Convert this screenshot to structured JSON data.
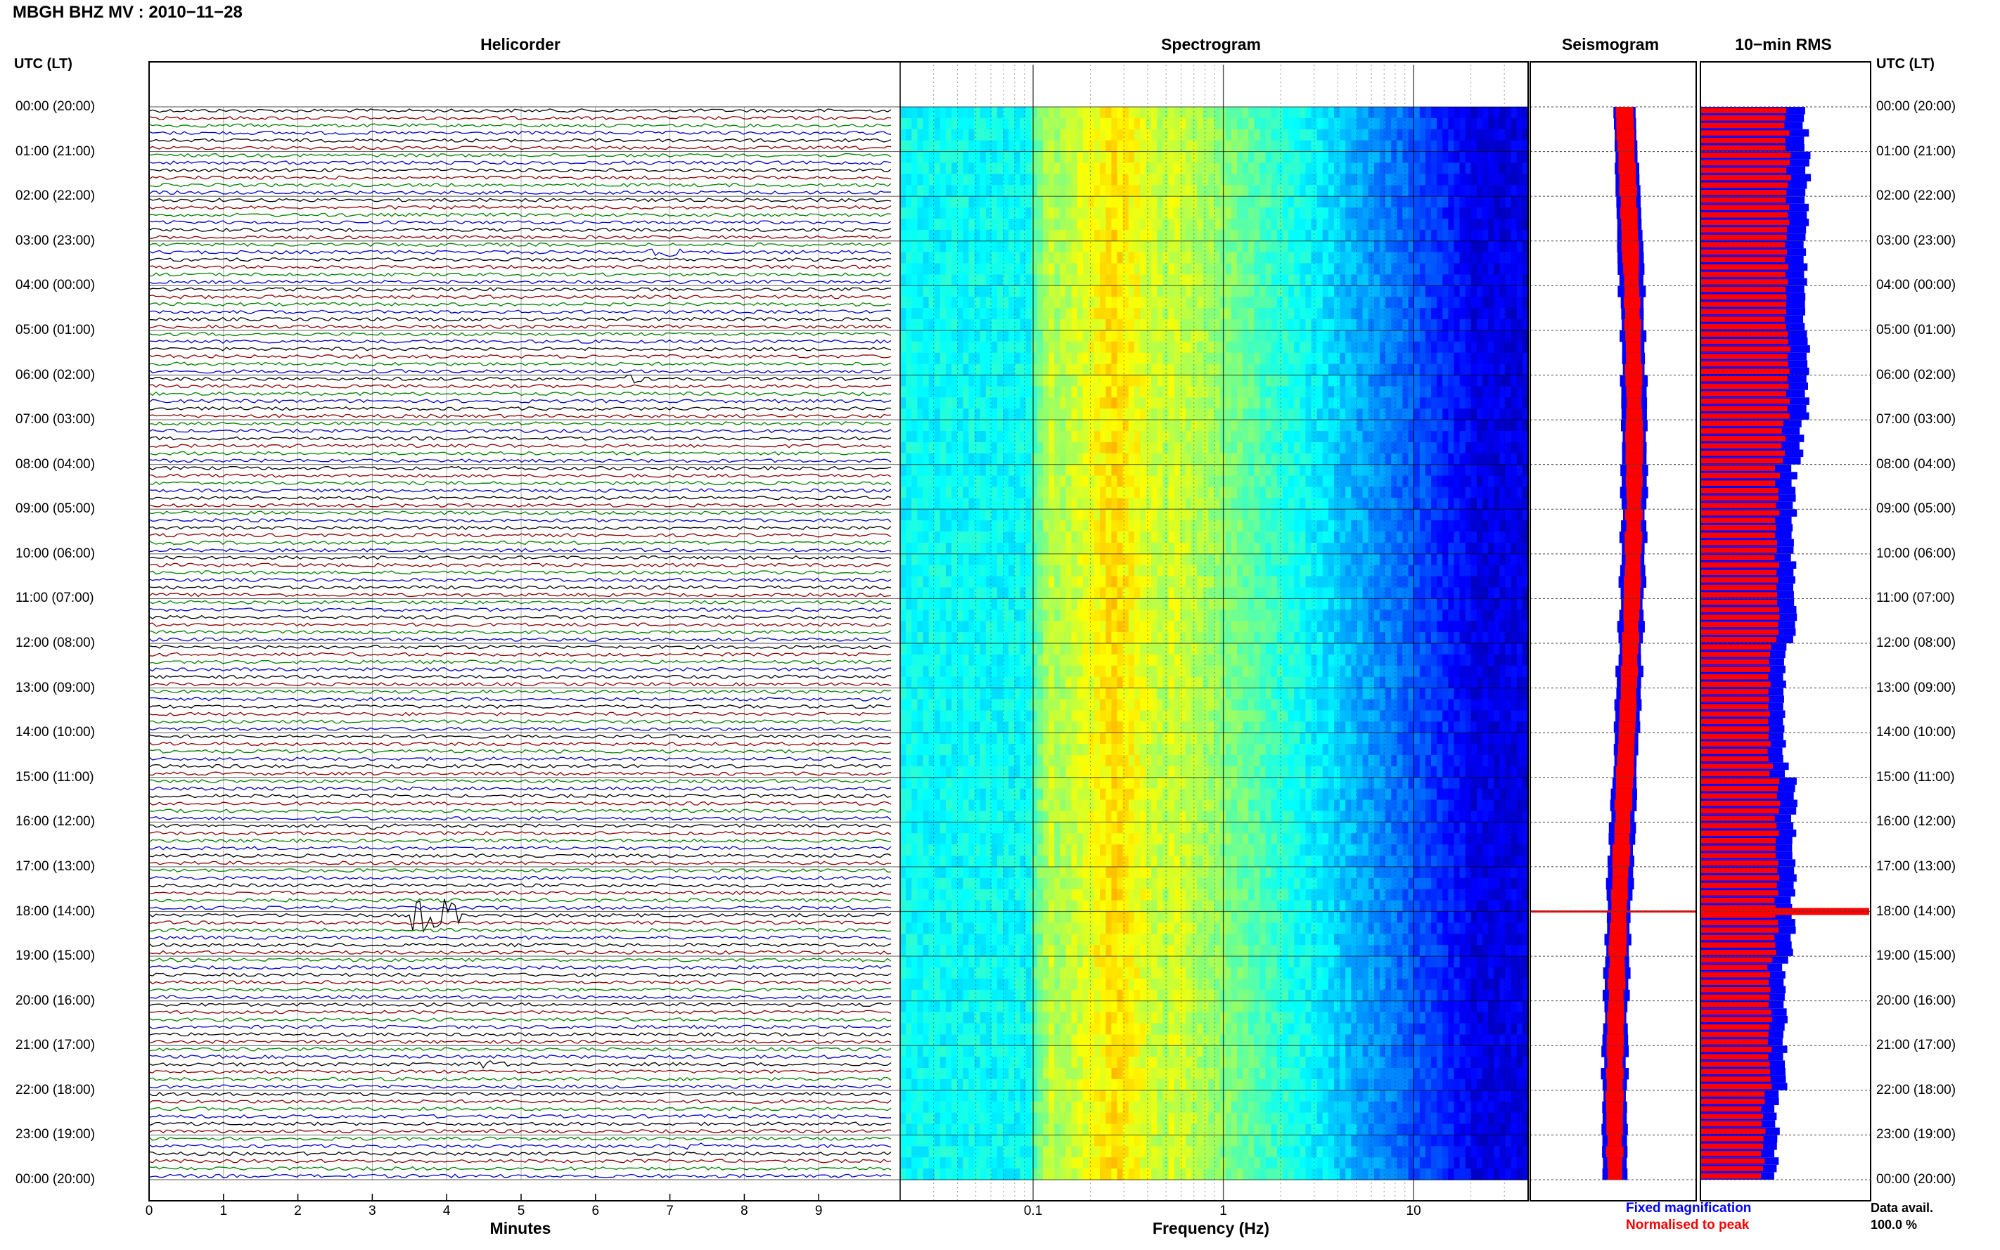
{
  "page": {
    "title": "MBGH BHZ MV : 2010−11−28",
    "utc_header": "UTC (LT)",
    "panels": {
      "helicorder": "Helicorder",
      "spectrogram": "Spectrogram",
      "seismogram": "Seismogram",
      "rms": "10−min RMS"
    },
    "legend": {
      "fixed": "Fixed magnification",
      "normalised": "Normalised to peak",
      "avail_label": "Data avail.",
      "avail_value": "100.0 %"
    },
    "colors": {
      "fixed": "#0000ff",
      "normalised": "#ff0000",
      "trace_cycle": [
        "#000000",
        "#8b0000",
        "#008000",
        "#0000cd"
      ]
    }
  },
  "chart_data": [
    {
      "type": "line",
      "name": "helicorder",
      "title": "Helicorder",
      "xlabel": "Minutes",
      "xlim": [
        0,
        10
      ],
      "x_ticks": [
        "0",
        "1",
        "2",
        "3",
        "4",
        "5",
        "6",
        "7",
        "8",
        "9"
      ],
      "y_labels": [
        "00:00 (20:00)",
        "01:00 (21:00)",
        "02:00 (22:00)",
        "03:00 (23:00)",
        "04:00 (00:00)",
        "05:00 (01:00)",
        "06:00 (02:00)",
        "07:00 (03:00)",
        "08:00 (04:00)",
        "09:00 (05:00)",
        "10:00 (06:00)",
        "11:00 (07:00)",
        "12:00 (08:00)",
        "13:00 (09:00)",
        "14:00 (10:00)",
        "15:00 (11:00)",
        "16:00 (12:00)",
        "17:00 (13:00)",
        "18:00 (14:00)",
        "19:00 (15:00)",
        "20:00 (16:00)",
        "21:00 (17:00)",
        "22:00 (18:00)",
        "23:00 (19:00)",
        "00:00 (20:00)"
      ],
      "rows_per_hour": 6,
      "events": [
        {
          "hour": 18.0,
          "minute": 3.6,
          "amplitude": "large"
        },
        {
          "hour": 16.0,
          "minute": 3.0,
          "amplitude": "small"
        },
        {
          "hour": 23.1,
          "minute": 7.3,
          "amplitude": "small"
        },
        {
          "hour": 21.3,
          "minute": 4.5,
          "amplitude": "small"
        },
        {
          "hour": 6.0,
          "minute": 6.5,
          "amplitude": "small"
        },
        {
          "hour": 3.2,
          "minute": 6.8,
          "amplitude": "small"
        }
      ]
    },
    {
      "type": "heatmap",
      "name": "spectrogram",
      "title": "Spectrogram",
      "xlabel": "Frequency (Hz)",
      "x_scale": "log",
      "xlim": [
        0.02,
        40
      ],
      "x_ticks": [
        "0.1",
        "1",
        "10"
      ],
      "colormap": "jet",
      "peak_band_hz": [
        0.15,
        0.5
      ]
    },
    {
      "type": "line",
      "name": "seismogram",
      "title": "Seismogram",
      "series": [
        {
          "name": "Fixed magnification"
        },
        {
          "name": "Normalised to peak"
        }
      ]
    },
    {
      "type": "bar",
      "name": "rms",
      "title": "10−min RMS",
      "series": [
        {
          "name": "Fixed magnification"
        },
        {
          "name": "Normalised to peak"
        }
      ],
      "hourly_relative_rms": [
        0.62,
        0.63,
        0.63,
        0.62,
        0.62,
        0.63,
        0.63,
        0.59,
        0.55,
        0.55,
        0.55,
        0.55,
        0.5,
        0.5,
        0.5,
        0.55,
        0.55,
        0.55,
        0.55,
        0.5,
        0.5,
        0.5,
        0.45,
        0.45
      ]
    }
  ]
}
